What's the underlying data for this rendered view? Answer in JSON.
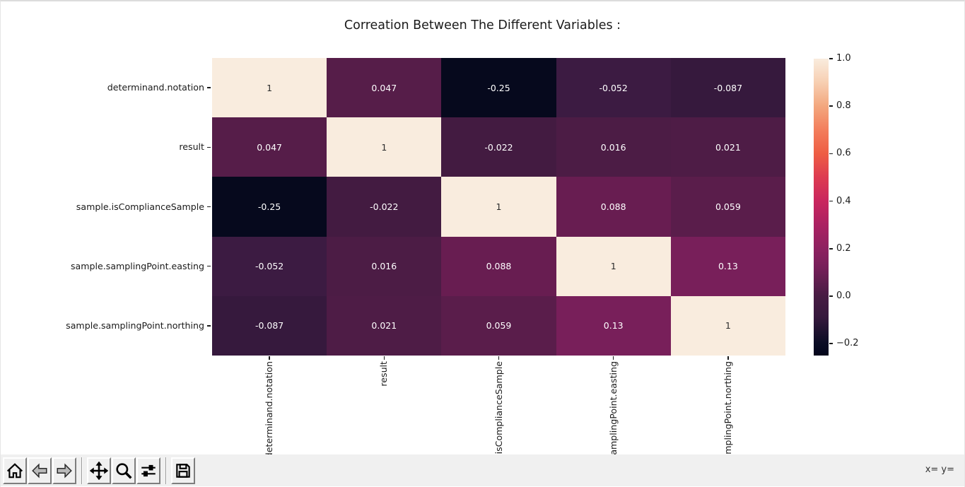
{
  "window": {
    "background": "#ffffff",
    "border_color": "#dcdcdc",
    "toolbar_background": "#f0f0f0"
  },
  "chart_data": {
    "type": "heatmap",
    "title": "Correation Between The Different Variables :",
    "categories": [
      "determinand.notation",
      "result",
      "sample.isComplianceSample",
      "sample.samplingPoint.easting",
      "sample.samplingPoint.northing"
    ],
    "matrix": [
      [
        1,
        0.047,
        -0.25,
        -0.052,
        -0.087
      ],
      [
        0.047,
        1,
        -0.022,
        0.016,
        0.021
      ],
      [
        -0.25,
        -0.022,
        1,
        0.088,
        0.059
      ],
      [
        -0.052,
        0.016,
        0.088,
        1,
        0.13
      ],
      [
        -0.087,
        0.021,
        0.059,
        0.13,
        1
      ]
    ],
    "cell_labels": [
      [
        "1",
        "0.047",
        "-0.25",
        "-0.052",
        "-0.087"
      ],
      [
        "0.047",
        "1",
        "-0.022",
        "0.016",
        "0.021"
      ],
      [
        "-0.25",
        "-0.022",
        "1",
        "0.088",
        "0.059"
      ],
      [
        "-0.052",
        "0.016",
        "0.088",
        "1",
        "0.13"
      ],
      [
        "-0.087",
        "0.021",
        "0.059",
        "0.13",
        "1"
      ]
    ],
    "colormap": "rocket",
    "vmin": -0.25,
    "vmax": 1.0,
    "annot": true,
    "grid": false,
    "legend_position": "right-colorbar",
    "colorbar_ticks": [
      "1.0",
      "0.8",
      "0.6",
      "0.4",
      "0.2",
      "0.0",
      "−0.2"
    ],
    "value_colors": {
      "1": "#f9ecde",
      "0.13": "#781f5a",
      "0.088": "#681d51",
      "0.059": "#5a1d4b",
      "0.047": "#561d49",
      "0.021": "#4e1c46",
      "0.016": "#4c1c45",
      "-0.022": "#431b41",
      "-0.052": "#3c1b42",
      "-0.087": "#36193d",
      "-0.25": "#06091d"
    },
    "colorbar_gradient_bottom_to_top": [
      {
        "pos": 0,
        "color": "#03051b"
      },
      {
        "pos": 4,
        "color": "#0a0c24"
      },
      {
        "pos": 13,
        "color": "#36193d"
      },
      {
        "pos": 20,
        "color": "#471c43"
      },
      {
        "pos": 30,
        "color": "#781f5a"
      },
      {
        "pos": 36,
        "color": "#8d2160"
      },
      {
        "pos": 44,
        "color": "#ab2162"
      },
      {
        "pos": 52,
        "color": "#c9265e"
      },
      {
        "pos": 60,
        "color": "#dd3b51"
      },
      {
        "pos": 68,
        "color": "#ee5d44"
      },
      {
        "pos": 76,
        "color": "#f37e5c"
      },
      {
        "pos": 84,
        "color": "#f3a77e"
      },
      {
        "pos": 92,
        "color": "#f7cfb2"
      },
      {
        "pos": 100,
        "color": "#f9ecde"
      }
    ],
    "text_on_dark": "#ffffff",
    "text_on_light": "#2b2b2b"
  },
  "toolbar": {
    "buttons": [
      {
        "name": "home-button",
        "icon": "home-icon"
      },
      {
        "name": "back-button",
        "icon": "back-arrow-icon"
      },
      {
        "name": "forward-button",
        "icon": "forward-arrow-icon"
      },
      {
        "name": "pan-button",
        "icon": "move-arrows-icon"
      },
      {
        "name": "zoom-button",
        "icon": "magnifier-icon"
      },
      {
        "name": "subplots-button",
        "icon": "sliders-icon"
      },
      {
        "name": "save-button",
        "icon": "floppy-disk-icon"
      }
    ],
    "status_text": "x= y="
  }
}
